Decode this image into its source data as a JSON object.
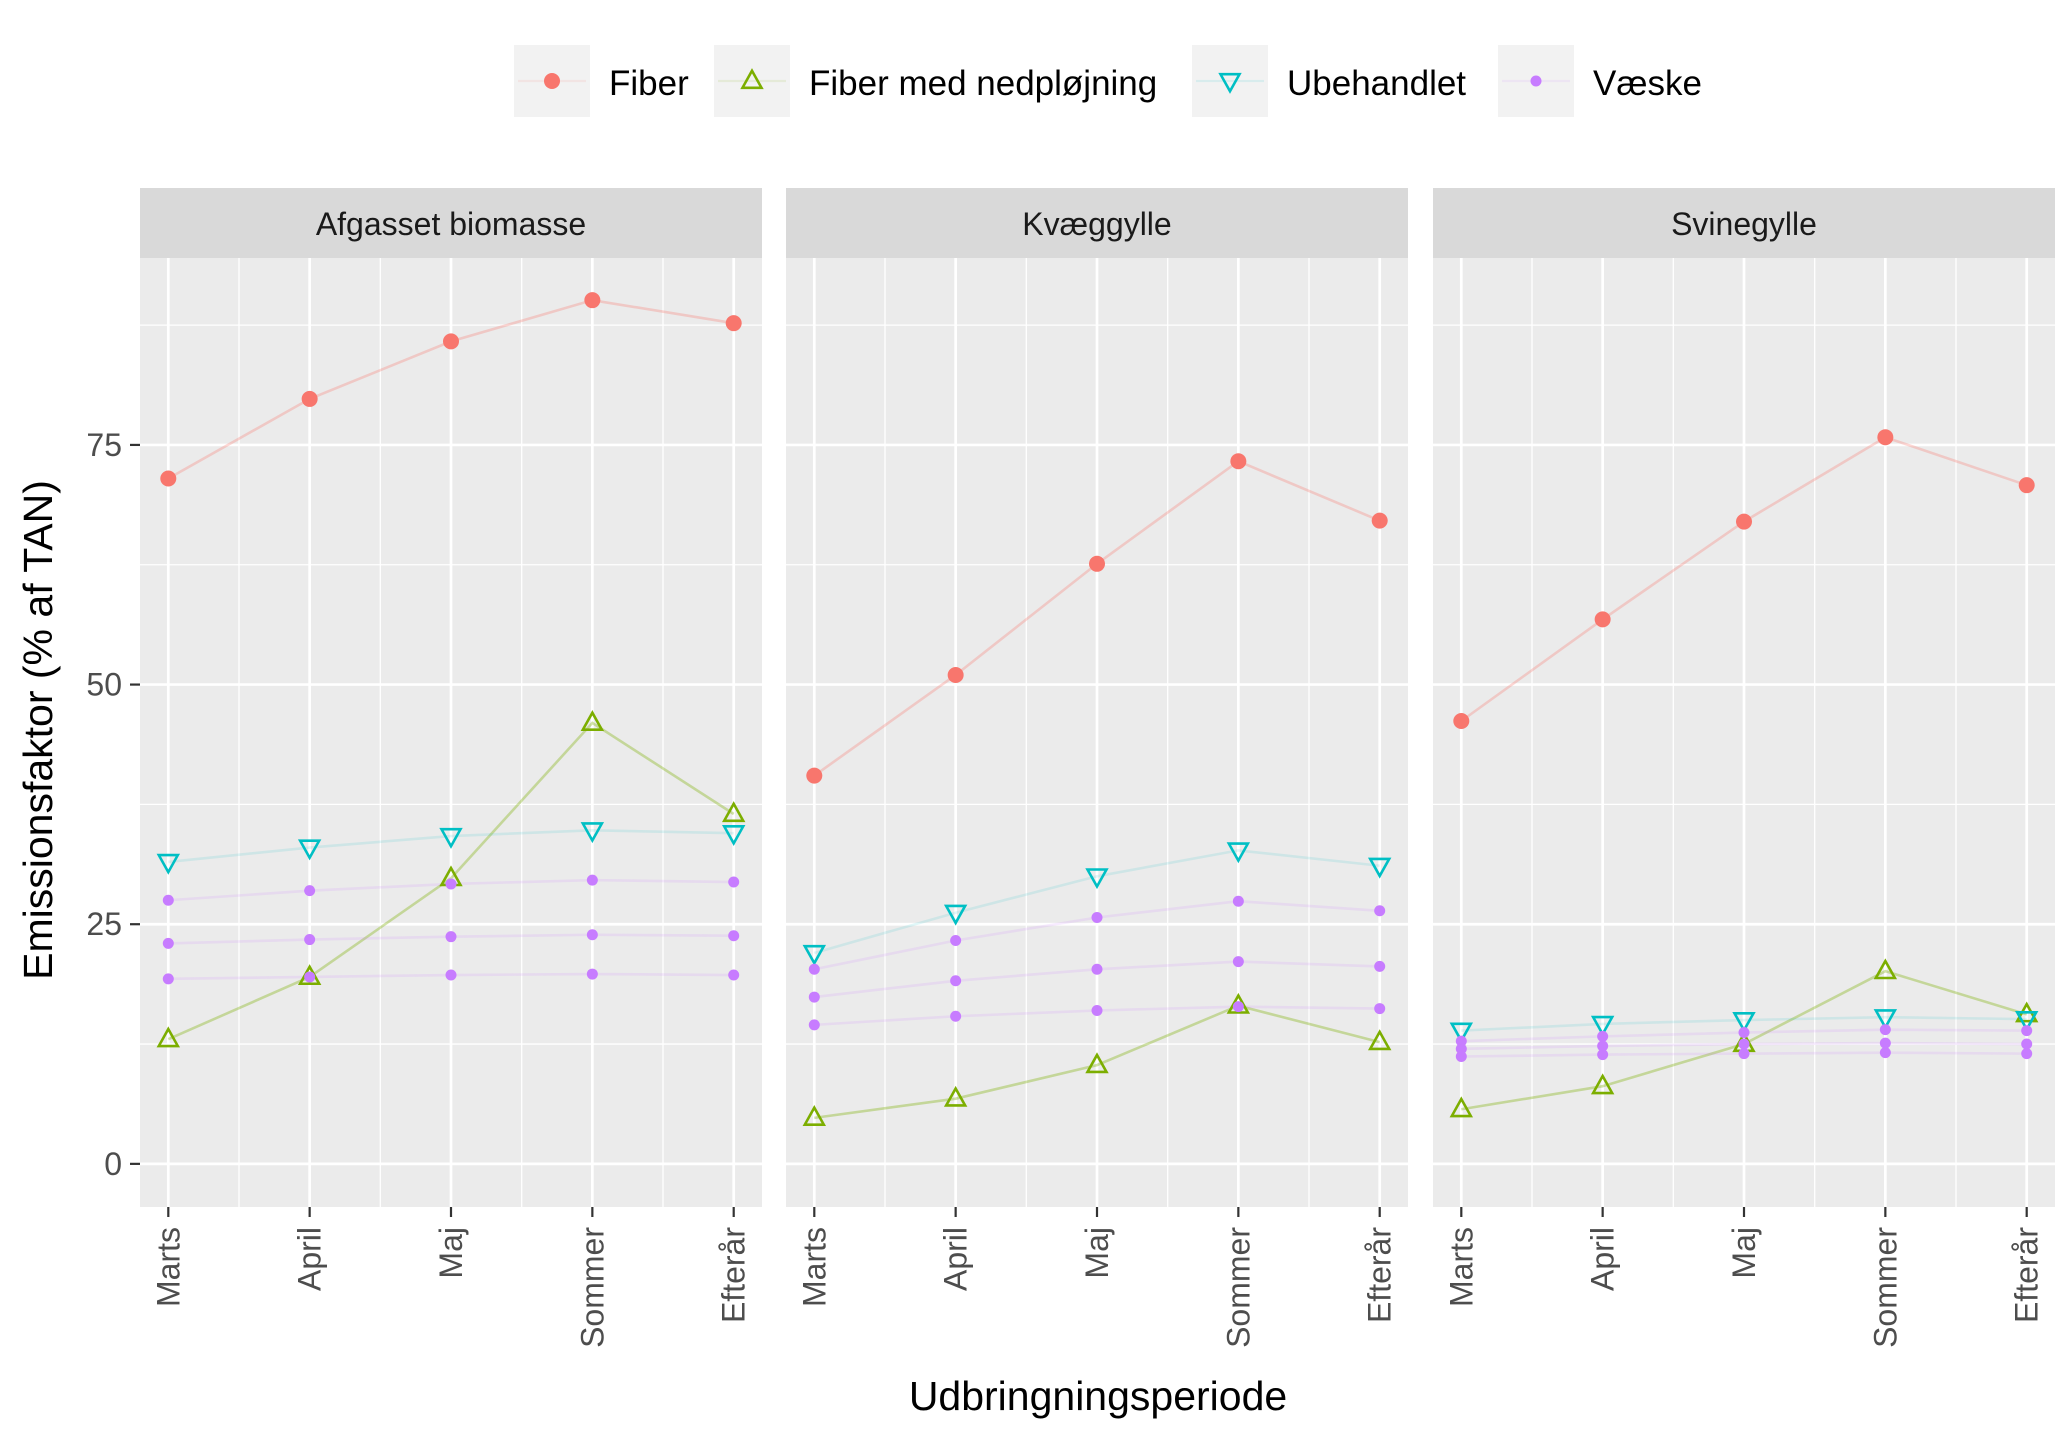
{
  "chart_data": {
    "type": "line",
    "xlabel": "Udbringningsperiode",
    "ylabel": "Emissionsfaktor (% af TAN)",
    "ylim": [
      -4.5,
      94.5
    ],
    "yticks": [
      0,
      25,
      50,
      75
    ],
    "grid": true,
    "legend_position": "top",
    "categories": [
      "Marts",
      "April",
      "Maj",
      "Sommer",
      "Efterår"
    ],
    "legend": [
      {
        "name": "Fiber",
        "shape": "circle",
        "color": "#F8766D"
      },
      {
        "name": "Fiber med nedpløjning",
        "shape": "triangle-up",
        "color": "#7CAE00"
      },
      {
        "name": "Ubehandlet",
        "shape": "triangle-down",
        "color": "#00BFC4"
      },
      {
        "name": "Væske",
        "shape": "small-dot",
        "color": "#C77CFF"
      }
    ],
    "panels": [
      {
        "title": "Afgasset biomasse",
        "series": [
          {
            "group": "Fiber",
            "values": [
              71.5,
              79.8,
              85.8,
              90.1,
              87.7
            ]
          },
          {
            "group": "Fiber med nedpløjning",
            "values": [
              13.0,
              19.5,
              29.8,
              46.0,
              36.5
            ]
          },
          {
            "group": "Ubehandlet",
            "values": [
              31.5,
              33.0,
              34.2,
              34.8,
              34.5
            ]
          },
          {
            "group": "Væske",
            "values": [
              27.5,
              28.5,
              29.2,
              29.6,
              29.4
            ]
          },
          {
            "group": "Væske",
            "values": [
              23.0,
              23.4,
              23.7,
              23.9,
              23.8
            ]
          },
          {
            "group": "Væske",
            "values": [
              19.3,
              19.5,
              19.7,
              19.8,
              19.7
            ]
          }
        ]
      },
      {
        "title": "Kvæggylle",
        "series": [
          {
            "group": "Fiber",
            "values": [
              40.5,
              51.0,
              62.6,
              73.3,
              67.1
            ]
          },
          {
            "group": "Fiber med nedpløjning",
            "values": [
              4.8,
              6.8,
              10.3,
              16.5,
              12.7
            ]
          },
          {
            "group": "Ubehandlet",
            "values": [
              22.0,
              26.2,
              30.0,
              32.7,
              31.1
            ]
          },
          {
            "group": "Væske",
            "values": [
              20.3,
              23.3,
              25.7,
              27.4,
              26.4
            ]
          },
          {
            "group": "Væske",
            "values": [
              17.4,
              19.1,
              20.3,
              21.1,
              20.6
            ]
          },
          {
            "group": "Væske",
            "values": [
              14.5,
              15.4,
              16.0,
              16.4,
              16.2
            ]
          }
        ]
      },
      {
        "title": "Svinegylle",
        "series": [
          {
            "group": "Fiber",
            "values": [
              46.2,
              56.8,
              67.0,
              75.8,
              70.8
            ]
          },
          {
            "group": "Fiber med nedpløjning",
            "values": [
              5.7,
              8.1,
              12.5,
              20.1,
              15.6
            ]
          },
          {
            "group": "Ubehandlet",
            "values": [
              13.9,
              14.6,
              15.0,
              15.3,
              15.1
            ]
          },
          {
            "group": "Væske",
            "values": [
              12.8,
              13.3,
              13.7,
              14.0,
              13.9
            ]
          },
          {
            "group": "Væske",
            "values": [
              12.0,
              12.3,
              12.5,
              12.6,
              12.5
            ]
          },
          {
            "group": "Væske",
            "values": [
              11.2,
              11.4,
              11.5,
              11.6,
              11.5
            ]
          }
        ]
      }
    ]
  }
}
